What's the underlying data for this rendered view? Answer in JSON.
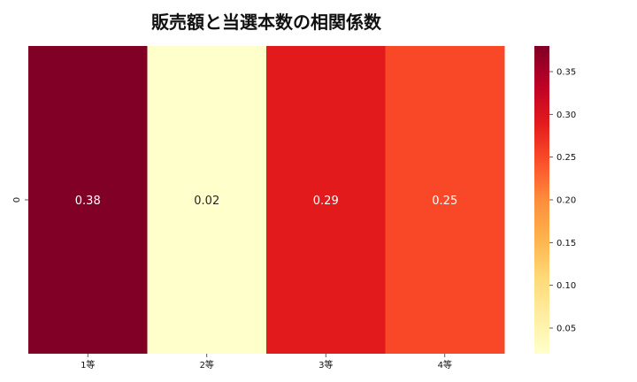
{
  "chart_data": {
    "type": "heatmap",
    "title": "販売額と当選本数の相関係数",
    "x_categories": [
      "1等",
      "2等",
      "3等",
      "4等"
    ],
    "y_categories": [
      "0"
    ],
    "values": [
      [
        0.38,
        0.02,
        0.29,
        0.25
      ]
    ],
    "annotations": [
      "0.38",
      "0.02",
      "0.29",
      "0.25"
    ],
    "colormap": "YlOrRd",
    "vmin": 0.02,
    "vmax": 0.38,
    "colorbar_ticks": [
      0.05,
      0.1,
      0.15,
      0.2,
      0.25,
      0.3,
      0.35
    ],
    "colorbar_tick_labels": [
      "0.05",
      "0.10",
      "0.15",
      "0.20",
      "0.25",
      "0.30",
      "0.35"
    ]
  }
}
